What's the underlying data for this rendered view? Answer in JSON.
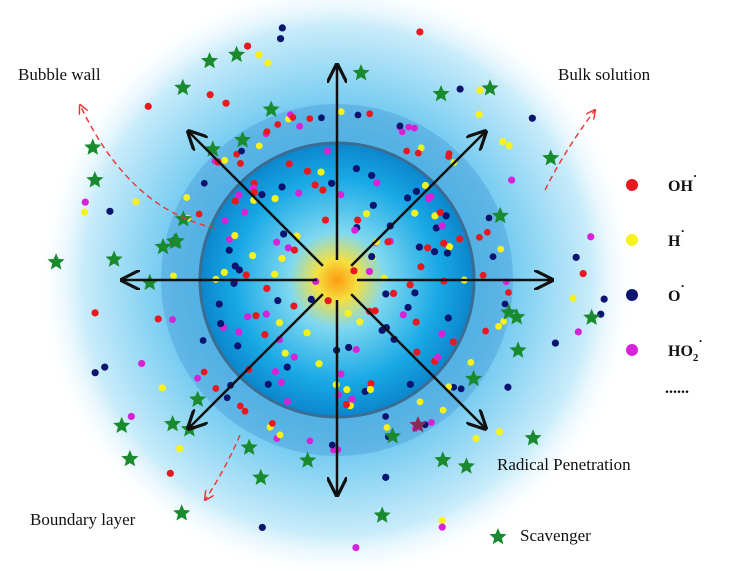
{
  "labels": {
    "bubble_wall": "Bubble wall",
    "bulk_solution": "Bulk solution",
    "boundary_layer": "Boundary layer",
    "radical_penetration": "Radical Penetration",
    "scavenger": "Scavenger"
  },
  "legend": [
    {
      "label": "OH",
      "sup": "·",
      "color": "#e8191e"
    },
    {
      "label": "H",
      "sup": "·",
      "color": "#f7f21a"
    },
    {
      "label": "O",
      "sup": "·",
      "color": "#0b1570"
    },
    {
      "label": "HO",
      "sub": "2",
      "sup": "·",
      "color": "#d822d8"
    }
  ],
  "more": "......"
}
